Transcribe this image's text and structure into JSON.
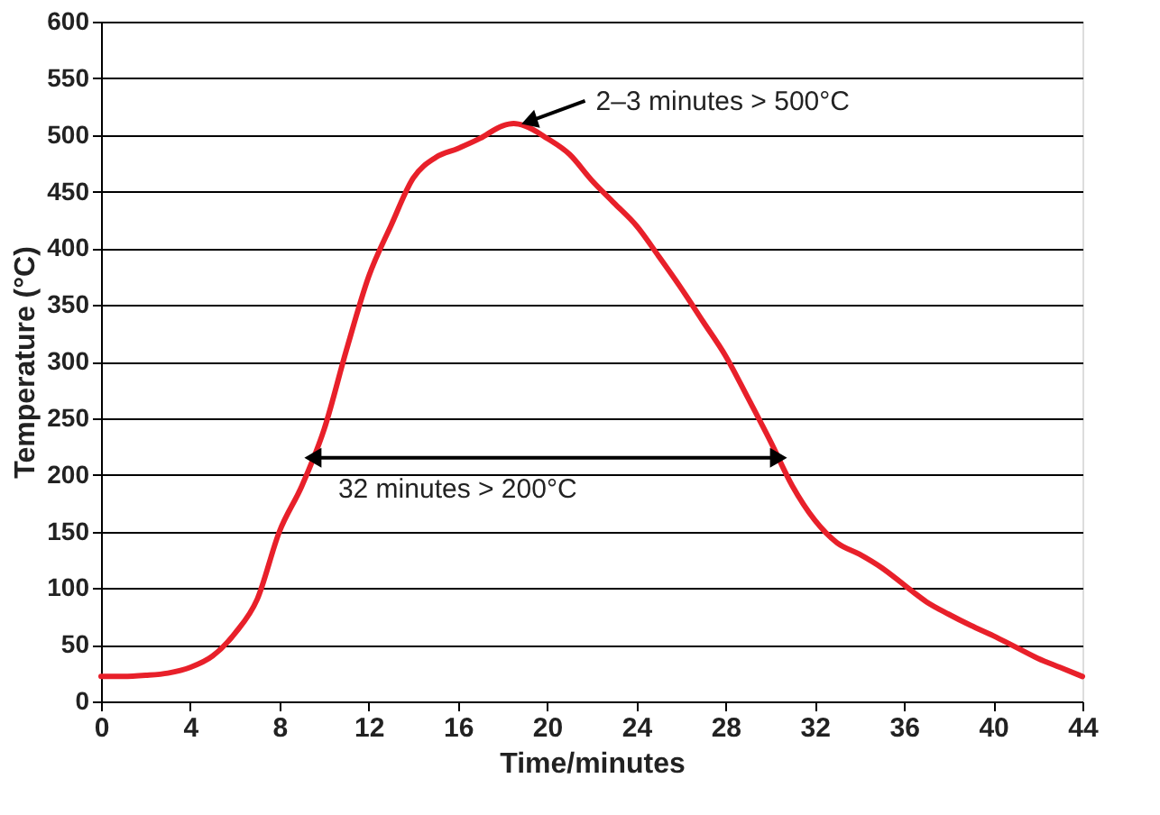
{
  "chart_data": {
    "type": "line",
    "xlabel": "Time/minutes",
    "ylabel": "Temperature (°C)",
    "x": [
      0,
      1,
      2,
      3,
      4,
      5,
      6,
      7,
      8,
      9,
      10,
      11,
      12,
      13,
      14,
      15,
      16,
      17,
      18,
      18.5,
      19,
      20,
      21,
      22,
      23,
      24,
      25,
      26,
      27,
      28,
      29,
      30,
      31,
      32,
      33,
      34,
      35,
      36,
      37,
      38,
      39,
      40,
      41,
      42,
      43,
      44
    ],
    "series": [
      {
        "color": "#e8202a",
        "values": [
          22,
          22,
          23,
          25,
          30,
          40,
          60,
          90,
          150,
          190,
          240,
          310,
          375,
          420,
          462,
          480,
          488,
          497,
          508,
          510,
          508,
          497,
          483,
          460,
          440,
          420,
          393,
          365,
          335,
          305,
          268,
          230,
          190,
          160,
          140,
          130,
          118,
          103,
          88,
          77,
          67,
          58,
          48,
          38,
          30,
          22
        ]
      }
    ],
    "xlim": [
      0,
      44
    ],
    "xticks": [
      0,
      4,
      8,
      12,
      16,
      20,
      24,
      28,
      32,
      36,
      40,
      44
    ],
    "ylim": [
      0,
      600
    ],
    "yticks": [
      0,
      50,
      100,
      150,
      200,
      250,
      300,
      350,
      400,
      450,
      500,
      550,
      600
    ],
    "grid": "y",
    "line_style": "solid",
    "marker": "none",
    "annotations": [
      {
        "text": "2–3 minutes > 500°C",
        "x": 18.5,
        "y": 510
      },
      {
        "text": "32 minutes > 200°C",
        "x": 9.5,
        "y": 215
      }
    ]
  }
}
